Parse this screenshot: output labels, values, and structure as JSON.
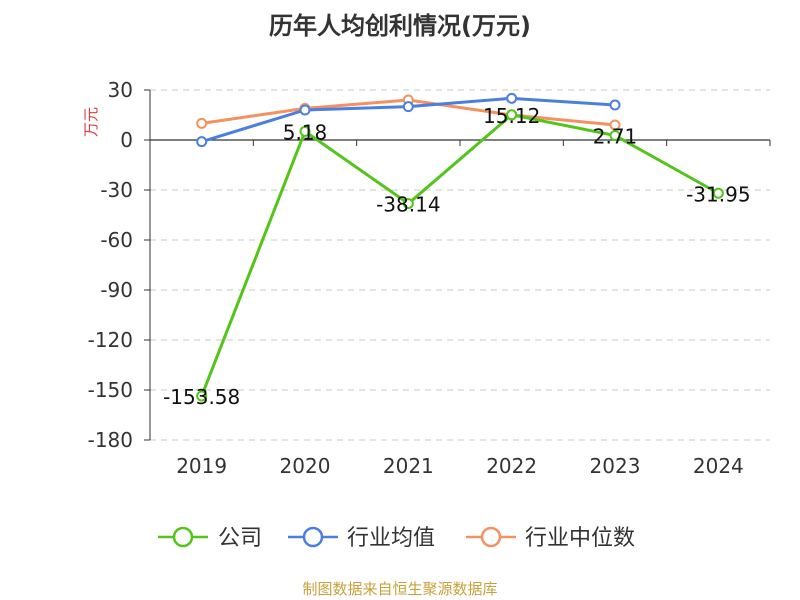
{
  "chart_data": {
    "type": "line",
    "title": "历年人均创利情况(万元)",
    "ylabel": "万元",
    "xlabel": "",
    "categories": [
      "2019",
      "2020",
      "2021",
      "2022",
      "2023",
      "2024"
    ],
    "ylim": [
      -180,
      30
    ],
    "yticks": [
      30,
      0,
      -30,
      -60,
      -90,
      -120,
      -150,
      -180
    ],
    "grid": true,
    "legend_position": "bottom",
    "series": [
      {
        "name": "公司",
        "color": "#52c41a",
        "values": [
          -153.58,
          5.18,
          -38.14,
          15.12,
          2.71,
          -31.95
        ],
        "labels": [
          "-153.58",
          "5.18",
          "-38.14",
          "15.12",
          "2.71",
          "-31.95"
        ]
      },
      {
        "name": "行业均值",
        "color": "#4a7fe0",
        "values": [
          -1,
          18,
          20,
          25,
          21,
          null
        ]
      },
      {
        "name": "行业中位数",
        "color": "#f39161",
        "values": [
          10,
          19,
          24,
          15,
          9,
          null
        ]
      }
    ]
  },
  "source": "制图数据来自恒生聚源数据库"
}
